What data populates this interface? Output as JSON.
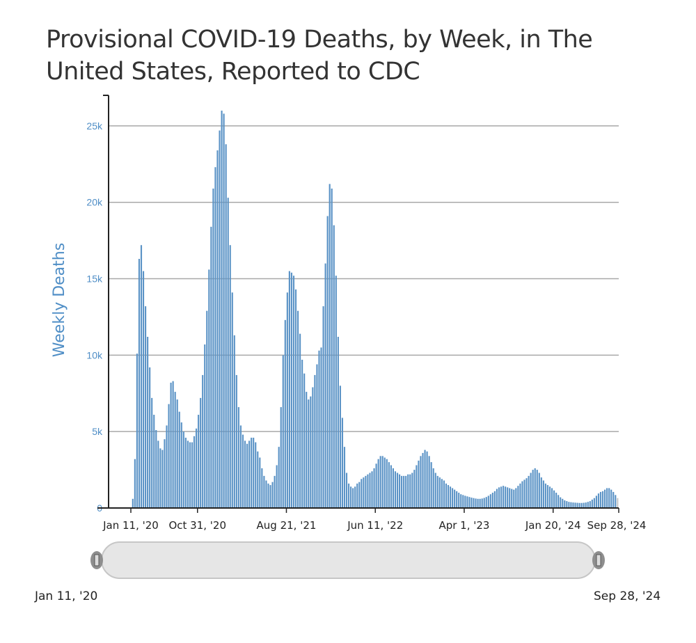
{
  "chart_data": {
    "type": "bar",
    "title": "Provisional COVID-19 Deaths, by Week, in The United States, Reported to CDC",
    "ylabel": "Weekly Deaths",
    "xlabel": "",
    "ylim": [
      0,
      27000
    ],
    "y_ticks": [
      {
        "value": 0,
        "label": "0"
      },
      {
        "value": 5000,
        "label": "5k"
      },
      {
        "value": 10000,
        "label": "10k"
      },
      {
        "value": 15000,
        "label": "15k"
      },
      {
        "value": 20000,
        "label": "20k"
      },
      {
        "value": 25000,
        "label": "25k"
      }
    ],
    "x_ticks": [
      {
        "week_index": 0,
        "label": "Jan 11, '20"
      },
      {
        "week_index": 42,
        "label": "Oct 31, '20"
      },
      {
        "week_index": 84,
        "label": "Aug 21, '21"
      },
      {
        "week_index": 126,
        "label": "Jun 11, '22"
      },
      {
        "week_index": 168,
        "label": "Apr 1, '23"
      },
      {
        "week_index": 210,
        "label": "Jan 20, '24"
      },
      {
        "week_index": 246,
        "label": "Sep 28, '24"
      }
    ],
    "grid": true,
    "bar_color": "#5b93c6",
    "last_bars_color": "#c8c8c8",
    "series": [
      {
        "x_start": "Jan 11, '20",
        "x_end": "Sep 28, '24",
        "values": [
          0,
          0,
          0,
          0,
          0,
          0,
          0,
          0,
          0,
          0,
          0,
          600,
          3200,
          10100,
          16300,
          17200,
          15500,
          13200,
          11200,
          9200,
          7200,
          6100,
          5100,
          4400,
          3900,
          3800,
          4500,
          5400,
          6800,
          8200,
          8300,
          7600,
          7100,
          6300,
          5600,
          5000,
          4600,
          4400,
          4300,
          4300,
          4700,
          5200,
          6100,
          7200,
          8700,
          10700,
          12900,
          15600,
          18400,
          20900,
          22300,
          23400,
          24700,
          26000,
          25800,
          23800,
          20300,
          17200,
          14100,
          11300,
          8700,
          6600,
          5400,
          4800,
          4400,
          4200,
          4400,
          4600,
          4600,
          4300,
          3700,
          3300,
          2600,
          2100,
          1800,
          1600,
          1500,
          1700,
          2100,
          2800,
          4000,
          6600,
          10000,
          12300,
          14100,
          15500,
          15400,
          15200,
          14300,
          12900,
          11400,
          9700,
          8800,
          7600,
          7100,
          7300,
          7900,
          8700,
          9400,
          10300,
          10500,
          13200,
          16000,
          19100,
          21200,
          20900,
          18500,
          15200,
          11200,
          8000,
          5900,
          4000,
          2300,
          1600,
          1400,
          1300,
          1400,
          1600,
          1700,
          1900,
          2000,
          2100,
          2200,
          2300,
          2400,
          2600,
          2900,
          3200,
          3400,
          3400,
          3300,
          3200,
          3000,
          2800,
          2600,
          2400,
          2300,
          2200,
          2100,
          2100,
          2100,
          2200,
          2200,
          2300,
          2500,
          2800,
          3100,
          3400,
          3600,
          3800,
          3700,
          3400,
          3000,
          2600,
          2300,
          2100,
          2000,
          1900,
          1800,
          1600,
          1500,
          1400,
          1300,
          1200,
          1100,
          1000,
          900,
          850,
          800,
          760,
          720,
          680,
          650,
          620,
          600,
          600,
          620,
          660,
          720,
          800,
          900,
          1000,
          1100,
          1250,
          1350,
          1400,
          1450,
          1400,
          1350,
          1300,
          1250,
          1200,
          1300,
          1450,
          1600,
          1750,
          1850,
          1950,
          2100,
          2300,
          2500,
          2600,
          2500,
          2300,
          2000,
          1800,
          1600,
          1500,
          1400,
          1300,
          1150,
          1000,
          850,
          700,
          600,
          500,
          450,
          400,
          380,
          360,
          350,
          340,
          330,
          330,
          340,
          360,
          400,
          450,
          550,
          650,
          800,
          950,
          1050,
          1100,
          1200,
          1300,
          1300,
          1200,
          1050,
          850,
          650
        ]
      }
    ]
  },
  "navigator": {
    "start_label": "Jan 11, '20",
    "end_label": "Sep 28, '24"
  }
}
